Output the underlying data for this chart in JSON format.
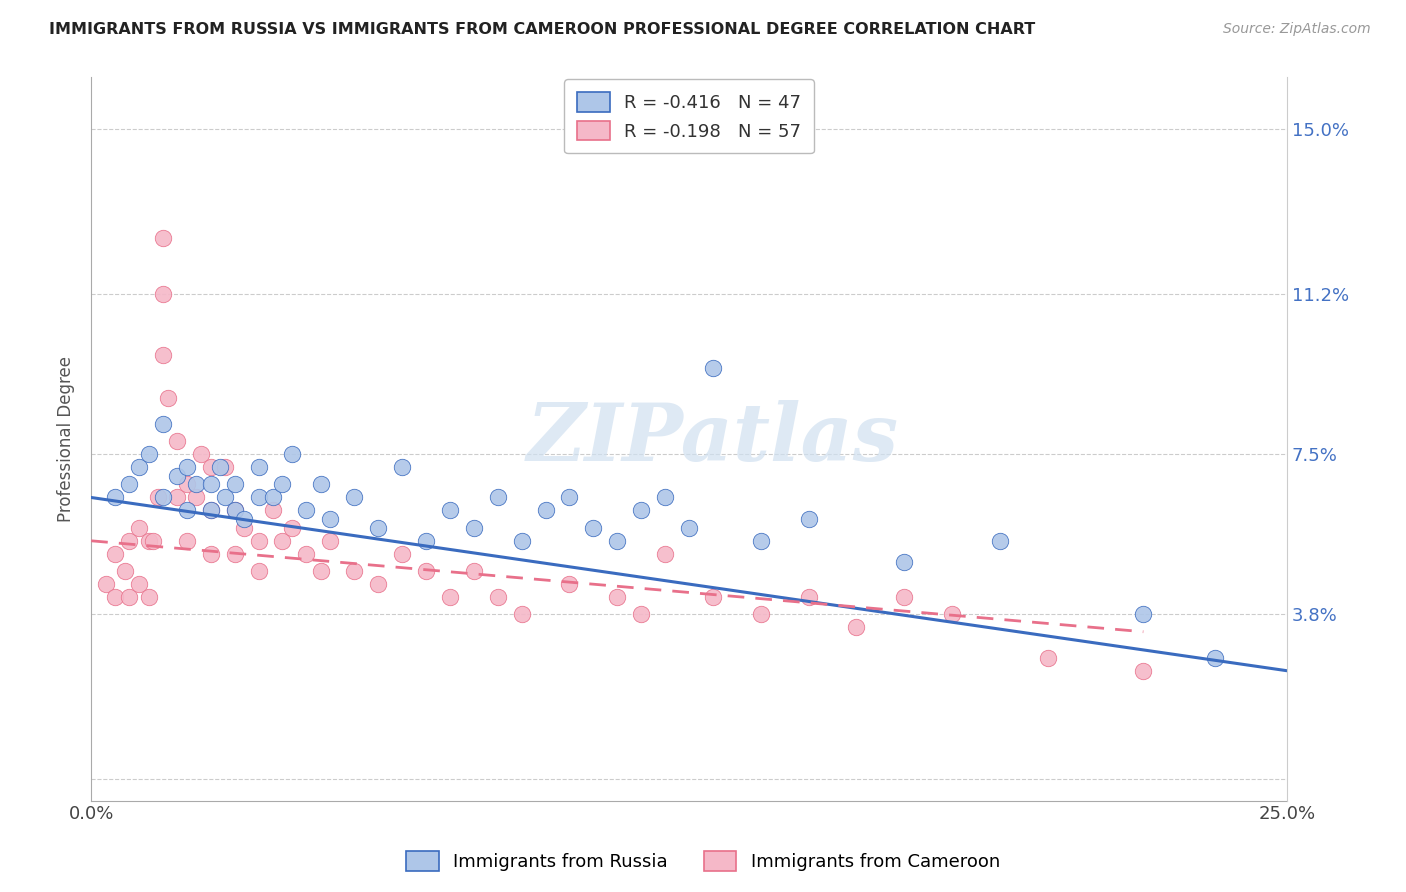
{
  "title": "IMMIGRANTS FROM RUSSIA VS IMMIGRANTS FROM CAMEROON PROFESSIONAL DEGREE CORRELATION CHART",
  "source": "Source: ZipAtlas.com",
  "ylabel": "Professional Degree",
  "xmin": 0.0,
  "xmax": 0.25,
  "ymin": -0.005,
  "ymax": 0.162,
  "yticks": [
    0.0,
    0.038,
    0.075,
    0.112,
    0.15
  ],
  "ytick_labels": [
    "",
    "3.8%",
    "7.5%",
    "11.2%",
    "15.0%"
  ],
  "xticks": [
    0.0,
    0.05,
    0.1,
    0.15,
    0.2,
    0.25
  ],
  "xtick_labels": [
    "0.0%",
    "",
    "",
    "",
    "",
    "25.0%"
  ],
  "russia_R": -0.416,
  "russia_N": 47,
  "cameroon_R": -0.198,
  "cameroon_N": 57,
  "russia_color": "#aec6e8",
  "cameroon_color": "#f5b8c8",
  "russia_line_color": "#3a6bbf",
  "cameroon_line_color": "#e8708a",
  "watermark_text": "ZIPatlas",
  "watermark_color": "#d0e0f0",
  "russia_line_x0": 0.0,
  "russia_line_x1": 0.25,
  "russia_line_y0": 0.065,
  "russia_line_y1": 0.025,
  "cameroon_line_x0": 0.0,
  "cameroon_line_x1": 0.22,
  "cameroon_line_y0": 0.055,
  "cameroon_line_y1": 0.034,
  "russia_x": [
    0.005,
    0.008,
    0.01,
    0.012,
    0.015,
    0.015,
    0.018,
    0.02,
    0.02,
    0.022,
    0.025,
    0.025,
    0.027,
    0.028,
    0.03,
    0.03,
    0.032,
    0.035,
    0.035,
    0.038,
    0.04,
    0.042,
    0.045,
    0.048,
    0.05,
    0.055,
    0.06,
    0.065,
    0.07,
    0.075,
    0.08,
    0.085,
    0.09,
    0.095,
    0.1,
    0.105,
    0.11,
    0.115,
    0.12,
    0.125,
    0.13,
    0.14,
    0.15,
    0.17,
    0.19,
    0.22,
    0.235
  ],
  "russia_y": [
    0.065,
    0.068,
    0.072,
    0.075,
    0.065,
    0.082,
    0.07,
    0.062,
    0.072,
    0.068,
    0.062,
    0.068,
    0.072,
    0.065,
    0.062,
    0.068,
    0.06,
    0.065,
    0.072,
    0.065,
    0.068,
    0.075,
    0.062,
    0.068,
    0.06,
    0.065,
    0.058,
    0.072,
    0.055,
    0.062,
    0.058,
    0.065,
    0.055,
    0.062,
    0.065,
    0.058,
    0.055,
    0.062,
    0.065,
    0.058,
    0.095,
    0.055,
    0.06,
    0.05,
    0.055,
    0.038,
    0.028
  ],
  "cameroon_x": [
    0.003,
    0.005,
    0.005,
    0.007,
    0.008,
    0.008,
    0.01,
    0.01,
    0.012,
    0.012,
    0.013,
    0.014,
    0.015,
    0.015,
    0.015,
    0.016,
    0.018,
    0.018,
    0.02,
    0.02,
    0.022,
    0.023,
    0.025,
    0.025,
    0.025,
    0.028,
    0.03,
    0.03,
    0.032,
    0.035,
    0.035,
    0.038,
    0.04,
    0.042,
    0.045,
    0.048,
    0.05,
    0.055,
    0.06,
    0.065,
    0.07,
    0.075,
    0.08,
    0.085,
    0.09,
    0.1,
    0.11,
    0.115,
    0.12,
    0.13,
    0.14,
    0.15,
    0.16,
    0.17,
    0.18,
    0.2,
    0.22
  ],
  "cameroon_y": [
    0.045,
    0.052,
    0.042,
    0.048,
    0.055,
    0.042,
    0.058,
    0.045,
    0.055,
    0.042,
    0.055,
    0.065,
    0.125,
    0.112,
    0.098,
    0.088,
    0.078,
    0.065,
    0.068,
    0.055,
    0.065,
    0.075,
    0.072,
    0.062,
    0.052,
    0.072,
    0.062,
    0.052,
    0.058,
    0.055,
    0.048,
    0.062,
    0.055,
    0.058,
    0.052,
    0.048,
    0.055,
    0.048,
    0.045,
    0.052,
    0.048,
    0.042,
    0.048,
    0.042,
    0.038,
    0.045,
    0.042,
    0.038,
    0.052,
    0.042,
    0.038,
    0.042,
    0.035,
    0.042,
    0.038,
    0.028,
    0.025
  ]
}
